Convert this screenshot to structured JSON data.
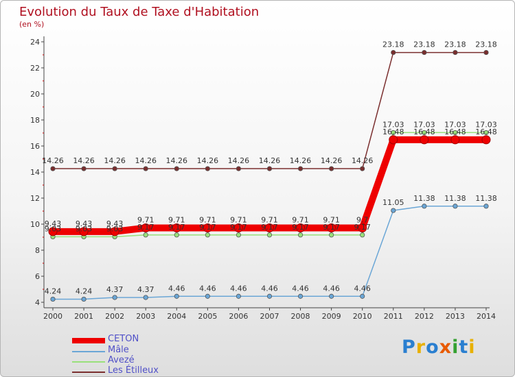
{
  "chart_data": {
    "type": "line",
    "title": "Evolution du Taux de Taxe d'Habitation",
    "subtitle": "(en %)",
    "categories": [
      "2000",
      "2001",
      "2002",
      "2003",
      "2004",
      "2005",
      "2006",
      "2007",
      "2008",
      "2009",
      "2010",
      "2011",
      "2012",
      "2013",
      "2014"
    ],
    "yticks": [
      4,
      6,
      8,
      10,
      12,
      14,
      16,
      18,
      20,
      22,
      24
    ],
    "ylim": [
      4,
      24
    ],
    "series": [
      {
        "name": "CETON",
        "color": "#ee0000",
        "values": [
          9.43,
          9.43,
          9.43,
          9.71,
          9.71,
          9.71,
          9.71,
          9.71,
          9.71,
          9.71,
          9.71,
          16.48,
          16.48,
          16.48,
          16.48
        ],
        "labels": [
          "9.43",
          "9.43",
          "9.43",
          "9.71",
          "9.71",
          "9.71",
          "9.71",
          "9.71",
          "9.71",
          "9.71",
          "9.7",
          "16.48",
          "16.48",
          "16.48",
          "16.48"
        ]
      },
      {
        "name": "Mâle",
        "color": "#6aa6d6",
        "values": [
          4.24,
          4.24,
          4.37,
          4.37,
          4.46,
          4.46,
          4.46,
          4.46,
          4.46,
          4.46,
          4.46,
          11.05,
          11.38,
          11.38,
          11.38
        ],
        "labels": [
          "4.24",
          "4.24",
          "4.37",
          "4.37",
          "4.46",
          "4.46",
          "4.46",
          "4.46",
          "4.46",
          "4.46",
          "4.46",
          "11.05",
          "11.38",
          "11.38",
          "11.38"
        ]
      },
      {
        "name": "Avezé",
        "color": "#99e07a",
        "values": [
          9.03,
          9.03,
          9.03,
          9.17,
          9.17,
          9.17,
          9.17,
          9.17,
          9.17,
          9.17,
          9.17,
          17.03,
          17.03,
          17.03,
          17.03
        ],
        "labels": [
          "9.03",
          "9.03",
          "9.03",
          "9.17",
          "9.17",
          "9.17",
          "9.17",
          "9.17",
          "9.17",
          "9.17",
          "9.17",
          "17.03",
          "17.03",
          "17.03",
          "17.03"
        ]
      },
      {
        "name": "Les Étilleux",
        "color": "#7a2e2e",
        "values": [
          14.26,
          14.26,
          14.26,
          14.26,
          14.26,
          14.26,
          14.26,
          14.26,
          14.26,
          14.26,
          14.26,
          23.18,
          23.18,
          23.18,
          23.18
        ],
        "labels": [
          "14.26",
          "14.26",
          "14.26",
          "14.26",
          "14.26",
          "14.26",
          "14.26",
          "14.26",
          "14.26",
          "14.26",
          "14.26",
          "23.18",
          "23.18",
          "23.18",
          "23.18"
        ]
      }
    ]
  },
  "legend": {
    "items": [
      {
        "label": "CETON",
        "color": "#ee0000"
      },
      {
        "label": "Mâle",
        "color": "#6aa6d6"
      },
      {
        "label": "Avezé",
        "color": "#99e07a"
      },
      {
        "label": "Les Étilleux",
        "color": "#7a2e2e"
      }
    ]
  },
  "logo": {
    "text": "Proxiti"
  }
}
